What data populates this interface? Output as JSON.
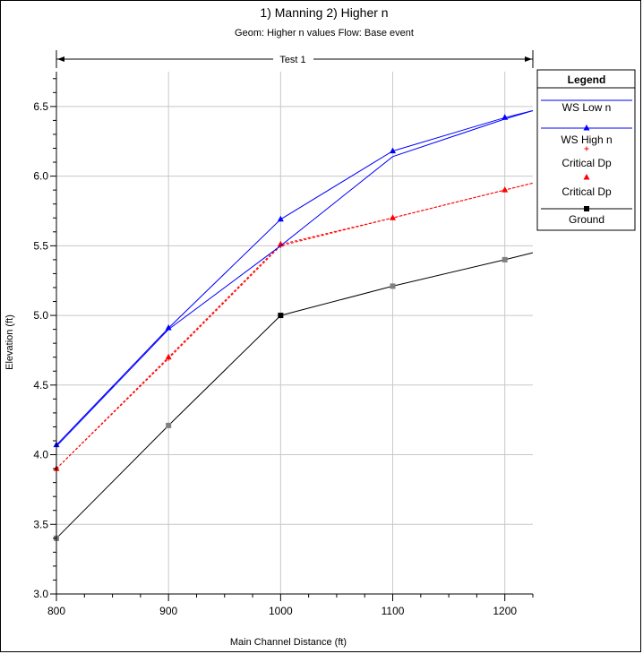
{
  "chart_data": {
    "type": "line",
    "title": "1) Manning    2) Higher n",
    "subtitle": "Geom: Higher n values    Flow: Base event",
    "reach_label": "Test 1",
    "xlabel": "Main Channel Distance (ft)",
    "ylabel": "Elevation (ft)",
    "xlim": [
      800,
      1225
    ],
    "ylim": [
      3.0,
      6.75
    ],
    "xticks": [
      "800",
      "900",
      "1000",
      "1100",
      "1200"
    ],
    "yticks": [
      "3.0",
      "3.5",
      "4.0",
      "4.5",
      "5.0",
      "5.5",
      "6.0",
      "6.5"
    ],
    "grid": true,
    "legend": {
      "title": "Legend",
      "placement": "right"
    },
    "series": [
      {
        "name": "WS Low n",
        "color": "#0000ff",
        "dash": "",
        "marker": "none",
        "x": [
          800,
          900,
          1000,
          1100,
          1200,
          1225
        ],
        "y": [
          4.06,
          4.9,
          5.5,
          6.14,
          6.41,
          6.47
        ]
      },
      {
        "name": "WS High n",
        "color": "#0000ff",
        "dash": "",
        "marker": "triangle",
        "x": [
          800,
          900,
          1000,
          1100,
          1200,
          1225
        ],
        "y": [
          4.07,
          4.91,
          5.69,
          6.18,
          6.42,
          6.47
        ]
      },
      {
        "name": "Critical Dp",
        "color": "#ff0000",
        "dash": "3,2",
        "marker": "plus",
        "x": [
          800,
          900,
          1000,
          1100,
          1200,
          1225
        ],
        "y": [
          3.9,
          4.69,
          5.5,
          5.7,
          5.9,
          5.95
        ]
      },
      {
        "name": "Critical Dp",
        "color": "#ff0000",
        "dash": "3,2",
        "marker": "triangle",
        "x": [
          800,
          900,
          1000,
          1100,
          1200,
          1225
        ],
        "y": [
          3.9,
          4.7,
          5.51,
          5.7,
          5.9,
          5.95
        ]
      },
      {
        "name": "Ground",
        "color": "#000000",
        "dash": "",
        "marker": "square",
        "x": [
          800,
          900,
          1000,
          1100,
          1200,
          1225
        ],
        "y": [
          3.4,
          4.21,
          5.0,
          5.21,
          5.4,
          5.45
        ]
      }
    ]
  }
}
